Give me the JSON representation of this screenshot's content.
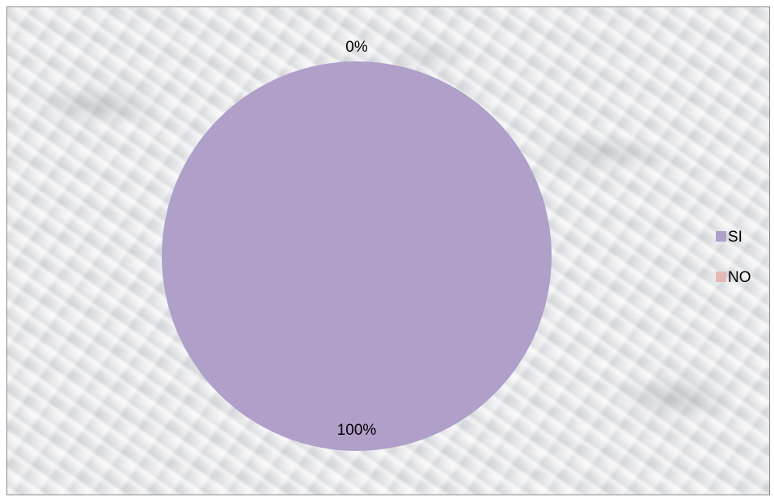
{
  "chart_data": {
    "type": "pie",
    "categories": [
      "SI",
      "NO"
    ],
    "values": [
      100,
      0
    ],
    "data_labels": [
      "100%",
      "0%"
    ],
    "colors": [
      "#b09fc9",
      "#e6b8b7"
    ],
    "legend_position": "right",
    "title": ""
  }
}
